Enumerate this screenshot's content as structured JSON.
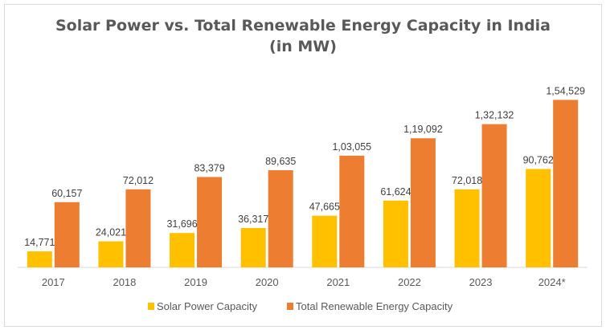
{
  "chart_data": {
    "type": "bar",
    "title": "Solar Power vs. Total Renewable Energy Capacity in India",
    "subtitle": "(in MW)",
    "categories": [
      "2017",
      "2018",
      "2019",
      "2020",
      "2021",
      "2022",
      "2023",
      "2024*"
    ],
    "series": [
      {
        "name": "Solar Power Capacity",
        "color": "#FFC000",
        "values": [
          14771,
          24021,
          31696,
          36317,
          47665,
          61624,
          72018,
          90762
        ],
        "labels": [
          "14,771",
          "24,021",
          "31,696",
          "36,317",
          "47,665",
          "61,624",
          "72,018",
          "90,762"
        ]
      },
      {
        "name": "Total Renewable Energy Capacity",
        "color": "#ED7D31",
        "values": [
          60157,
          72012,
          83379,
          89635,
          103055,
          119092,
          132132,
          154529
        ],
        "labels": [
          "60,157",
          "72,012",
          "83,379",
          "89,635",
          "1,03,055",
          "1,19,092",
          "1,32,132",
          "1,54,529"
        ]
      }
    ],
    "ylim": [
      0,
      160000
    ],
    "grid": false,
    "legend": "bottom"
  }
}
